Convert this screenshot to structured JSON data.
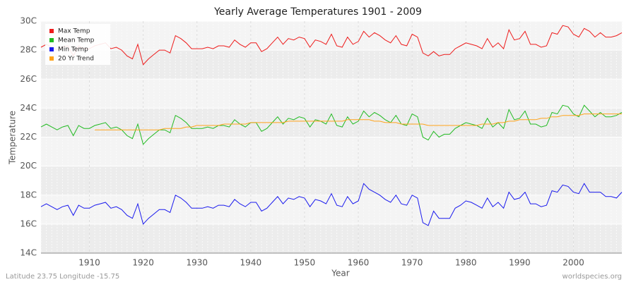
{
  "chart_data": {
    "type": "line",
    "title": "Yearly Average Temperatures 1901 - 2009",
    "xlabel": "Year",
    "ylabel": "Temperature",
    "footer_left": "Latitude 23.75 Longitude -15.75",
    "footer_right": "worldspecies.org",
    "legend": "upper left",
    "grid": true,
    "xlim": [
      1901,
      2009
    ],
    "xticks": [
      1910,
      1920,
      1930,
      1940,
      1950,
      1960,
      1970,
      1980,
      1990,
      2000
    ],
    "ylim": [
      14,
      30
    ],
    "yticks": [
      {
        "value": 14,
        "label": "14C"
      },
      {
        "value": 16,
        "label": "16C"
      },
      {
        "value": 18,
        "label": "18C"
      },
      {
        "value": 20,
        "label": "20C"
      },
      {
        "value": 22,
        "label": "22C"
      },
      {
        "value": 24,
        "label": "24C"
      },
      {
        "value": 26,
        "label": "26C"
      },
      {
        "value": 28,
        "label": "28C"
      },
      {
        "value": 30,
        "label": "30C"
      }
    ],
    "x": [
      1901,
      1902,
      1903,
      1904,
      1905,
      1906,
      1907,
      1908,
      1909,
      1910,
      1911,
      1912,
      1913,
      1914,
      1915,
      1916,
      1917,
      1918,
      1919,
      1920,
      1921,
      1922,
      1923,
      1924,
      1925,
      1926,
      1927,
      1928,
      1929,
      1930,
      1931,
      1932,
      1933,
      1934,
      1935,
      1936,
      1937,
      1938,
      1939,
      1940,
      1941,
      1942,
      1943,
      1944,
      1945,
      1946,
      1947,
      1948,
      1949,
      1950,
      1951,
      1952,
      1953,
      1954,
      1955,
      1956,
      1957,
      1958,
      1959,
      1960,
      1961,
      1962,
      1963,
      1964,
      1965,
      1966,
      1967,
      1968,
      1969,
      1970,
      1971,
      1972,
      1973,
      1974,
      1975,
      1976,
      1977,
      1978,
      1979,
      1980,
      1981,
      1982,
      1983,
      1984,
      1985,
      1986,
      1987,
      1988,
      1989,
      1990,
      1991,
      1992,
      1993,
      1994,
      1995,
      1996,
      1997,
      1998,
      1999,
      2000,
      2001,
      2002,
      2003,
      2004,
      2005,
      2006,
      2007,
      2008,
      2009
    ],
    "series": [
      {
        "name": "Max Temp",
        "color": "#ee1c1c",
        "values": [
          28.2,
          28.4,
          28.2,
          28.0,
          28.2,
          28.3,
          27.6,
          28.3,
          28.1,
          28.1,
          28.3,
          28.4,
          28.5,
          28.1,
          28.2,
          28.0,
          27.6,
          27.4,
          28.4,
          27.0,
          27.4,
          27.7,
          28.0,
          28.0,
          27.8,
          29.0,
          28.8,
          28.5,
          28.1,
          28.1,
          28.1,
          28.2,
          28.1,
          28.3,
          28.3,
          28.2,
          28.7,
          28.4,
          28.2,
          28.5,
          28.5,
          27.9,
          28.1,
          28.5,
          28.9,
          28.4,
          28.8,
          28.7,
          28.9,
          28.8,
          28.2,
          28.7,
          28.6,
          28.4,
          29.1,
          28.3,
          28.2,
          28.9,
          28.4,
          28.6,
          29.3,
          28.9,
          29.2,
          29.0,
          28.7,
          28.5,
          29.0,
          28.4,
          28.3,
          29.1,
          28.9,
          27.8,
          27.6,
          27.9,
          27.6,
          27.7,
          27.7,
          28.1,
          28.3,
          28.5,
          28.4,
          28.3,
          28.1,
          28.8,
          28.2,
          28.5,
          28.1,
          29.4,
          28.7,
          28.8,
          29.3,
          28.4,
          28.4,
          28.2,
          28.3,
          29.2,
          29.1,
          29.7,
          29.6,
          29.1,
          28.9,
          29.5,
          29.3,
          28.9,
          29.2,
          28.9,
          28.9,
          29.0,
          29.2
        ]
      },
      {
        "name": "Mean Temp",
        "color": "#22bb22",
        "values": [
          22.7,
          22.9,
          22.7,
          22.5,
          22.7,
          22.8,
          22.1,
          22.8,
          22.6,
          22.6,
          22.8,
          22.9,
          23.0,
          22.6,
          22.7,
          22.5,
          22.1,
          21.9,
          22.9,
          21.5,
          21.9,
          22.2,
          22.5,
          22.5,
          22.3,
          23.5,
          23.3,
          23.0,
          22.6,
          22.6,
          22.6,
          22.7,
          22.6,
          22.8,
          22.8,
          22.7,
          23.2,
          22.9,
          22.7,
          23.0,
          23.0,
          22.4,
          22.6,
          23.0,
          23.4,
          22.9,
          23.3,
          23.2,
          23.4,
          23.3,
          22.7,
          23.2,
          23.1,
          22.9,
          23.6,
          22.8,
          22.7,
          23.4,
          22.9,
          23.1,
          23.8,
          23.4,
          23.7,
          23.5,
          23.2,
          23.0,
          23.5,
          22.9,
          22.8,
          23.6,
          23.4,
          22.0,
          21.8,
          22.4,
          22.0,
          22.2,
          22.2,
          22.6,
          22.8,
          23.0,
          22.9,
          22.8,
          22.6,
          23.3,
          22.7,
          23.0,
          22.6,
          23.9,
          23.2,
          23.3,
          23.8,
          22.9,
          22.9,
          22.7,
          22.8,
          23.7,
          23.6,
          24.2,
          24.1,
          23.6,
          23.4,
          24.2,
          23.8,
          23.4,
          23.7,
          23.4,
          23.4,
          23.5,
          23.7
        ]
      },
      {
        "name": "Min Temp",
        "color": "#1a1aee",
        "values": [
          17.2,
          17.4,
          17.2,
          17.0,
          17.2,
          17.3,
          16.6,
          17.3,
          17.1,
          17.1,
          17.3,
          17.4,
          17.5,
          17.1,
          17.2,
          17.0,
          16.6,
          16.4,
          17.4,
          16.0,
          16.4,
          16.7,
          17.0,
          17.0,
          16.8,
          18.0,
          17.8,
          17.5,
          17.1,
          17.1,
          17.1,
          17.2,
          17.1,
          17.3,
          17.3,
          17.2,
          17.7,
          17.4,
          17.2,
          17.5,
          17.5,
          16.9,
          17.1,
          17.5,
          17.9,
          17.4,
          17.8,
          17.7,
          17.9,
          17.8,
          17.2,
          17.7,
          17.6,
          17.4,
          18.1,
          17.3,
          17.2,
          17.9,
          17.4,
          17.6,
          18.8,
          18.4,
          18.2,
          18.0,
          17.7,
          17.5,
          18.0,
          17.4,
          17.3,
          18.0,
          17.8,
          16.1,
          15.9,
          16.9,
          16.4,
          16.4,
          16.4,
          17.1,
          17.3,
          17.6,
          17.5,
          17.3,
          17.1,
          17.8,
          17.2,
          17.5,
          17.1,
          18.2,
          17.7,
          17.8,
          18.2,
          17.4,
          17.4,
          17.2,
          17.3,
          18.3,
          18.2,
          18.7,
          18.6,
          18.2,
          18.1,
          18.8,
          18.2,
          18.2,
          18.2,
          17.9,
          17.9,
          17.8,
          18.2
        ]
      },
      {
        "name": "20 Yr Trend",
        "color": "#ffa31a",
        "values": [
          null,
          null,
          null,
          null,
          null,
          null,
          null,
          null,
          null,
          null,
          22.5,
          22.5,
          22.5,
          22.5,
          22.5,
          22.5,
          22.5,
          22.5,
          22.5,
          22.5,
          22.5,
          22.5,
          22.5,
          22.6,
          22.6,
          22.6,
          22.6,
          22.7,
          22.7,
          22.8,
          22.8,
          22.8,
          22.8,
          22.8,
          22.9,
          22.9,
          22.9,
          22.9,
          22.9,
          23.0,
          23.0,
          23.0,
          23.0,
          23.0,
          23.0,
          23.0,
          23.1,
          23.1,
          23.1,
          23.1,
          23.1,
          23.1,
          23.1,
          23.1,
          23.1,
          23.1,
          23.1,
          23.2,
          23.2,
          23.2,
          23.2,
          23.2,
          23.1,
          23.1,
          23.0,
          23.0,
          23.0,
          22.9,
          22.9,
          22.9,
          22.9,
          22.9,
          22.8,
          22.8,
          22.8,
          22.8,
          22.8,
          22.8,
          22.8,
          22.8,
          22.8,
          22.8,
          22.9,
          22.9,
          22.9,
          23.0,
          23.0,
          23.1,
          23.1,
          23.2,
          23.2,
          23.2,
          23.2,
          23.3,
          23.3,
          23.4,
          23.4,
          23.5,
          23.5,
          23.5,
          23.5,
          23.6,
          23.6,
          23.6,
          23.6,
          23.6,
          23.6,
          23.6,
          23.6
        ]
      }
    ]
  }
}
